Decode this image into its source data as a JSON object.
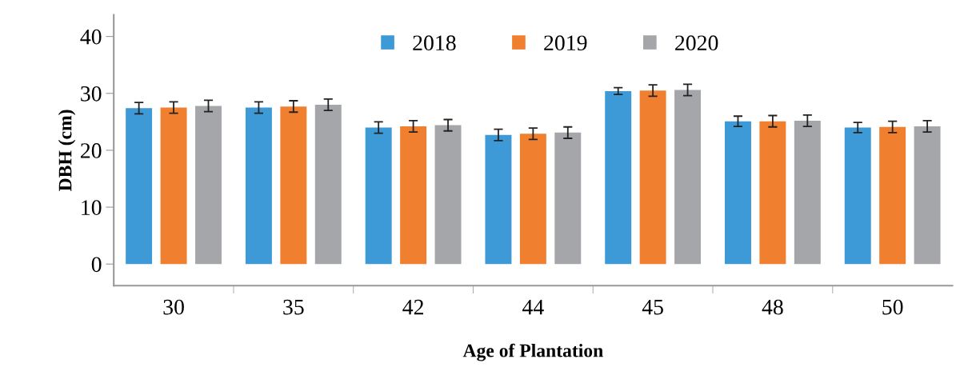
{
  "chart_data": {
    "type": "bar",
    "xlabel": "Age of Plantation",
    "ylabel": "DBH (cm)",
    "categories": [
      "30",
      "35",
      "42",
      "44",
      "45",
      "48",
      "50"
    ],
    "series": [
      {
        "name": "2018",
        "color": "#3d9ad6",
        "values": [
          27.4,
          27.5,
          24.0,
          22.7,
          30.4,
          25.1,
          24.0
        ],
        "errors": [
          1.0,
          1.0,
          1.0,
          1.0,
          0.6,
          0.9,
          0.9
        ]
      },
      {
        "name": "2019",
        "color": "#f07f2f",
        "values": [
          27.5,
          27.7,
          24.2,
          22.9,
          30.5,
          25.1,
          24.1
        ],
        "errors": [
          1.0,
          1.0,
          1.0,
          1.0,
          1.0,
          1.0,
          1.0
        ]
      },
      {
        "name": "2020",
        "color": "#a5a6a9",
        "values": [
          27.8,
          28.0,
          24.4,
          23.1,
          30.6,
          25.2,
          24.2
        ],
        "errors": [
          1.0,
          1.0,
          1.0,
          1.0,
          1.0,
          1.0,
          1.0
        ]
      }
    ],
    "ylim": [
      -3.8,
      43.8
    ],
    "yticks": [
      0,
      10,
      20,
      30,
      40
    ],
    "grid": false,
    "legend": "top"
  }
}
